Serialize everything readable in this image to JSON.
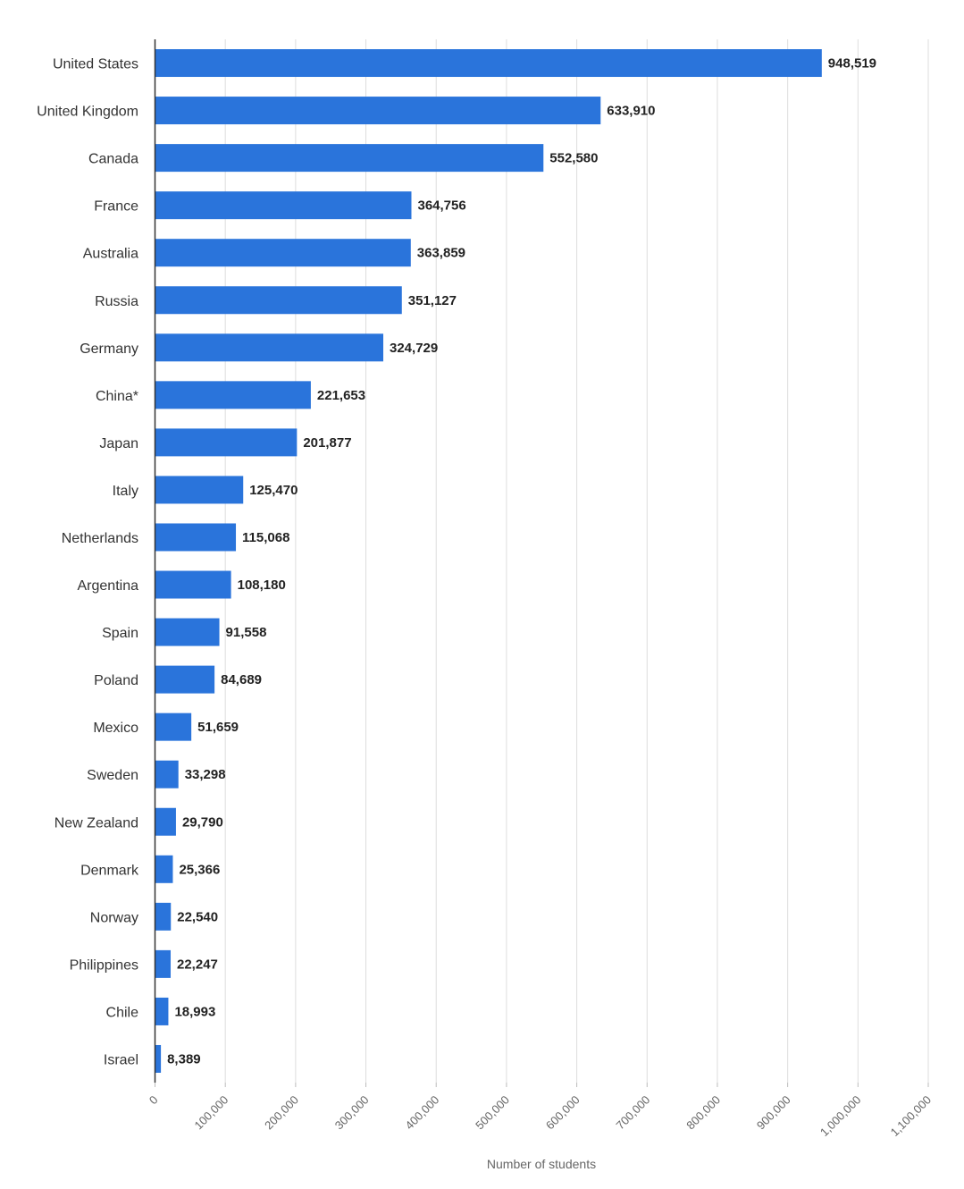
{
  "chart_data": {
    "type": "bar",
    "orientation": "horizontal",
    "title": "",
    "xlabel": "Number of students",
    "ylabel": "",
    "xlim": [
      0,
      1100000
    ],
    "grid": true,
    "bar_color": "#2A74DB",
    "tick_values": [
      0,
      100000,
      200000,
      300000,
      400000,
      500000,
      600000,
      700000,
      800000,
      900000,
      1000000,
      1100000
    ],
    "tick_labels": [
      "0",
      "100,000",
      "200,000",
      "300,000",
      "400,000",
      "500,000",
      "600,000",
      "700,000",
      "800,000",
      "900,000",
      "1,000,000",
      "1,100,000"
    ],
    "categories": [
      "United States",
      "United Kingdom",
      "Canada",
      "France",
      "Australia",
      "Russia",
      "Germany",
      "China*",
      "Japan",
      "Italy",
      "Netherlands",
      "Argentina",
      "Spain",
      "Poland",
      "Mexico",
      "Sweden",
      "New Zealand",
      "Denmark",
      "Norway",
      "Philippines",
      "Chile",
      "Israel"
    ],
    "values": [
      948519,
      633910,
      552580,
      364756,
      363859,
      351127,
      324729,
      221653,
      201877,
      125470,
      115068,
      108180,
      91558,
      84689,
      51659,
      33298,
      29790,
      25366,
      22540,
      22247,
      18993,
      8389
    ],
    "value_labels": [
      "948,519",
      "633,910",
      "552,580",
      "364,756",
      "363,859",
      "351,127",
      "324,729",
      "221,653",
      "201,877",
      "125,470",
      "115,068",
      "108,180",
      "91,558",
      "84,689",
      "51,659",
      "33,298",
      "29,790",
      "25,366",
      "22,540",
      "22,247",
      "18,993",
      "8,389"
    ]
  }
}
